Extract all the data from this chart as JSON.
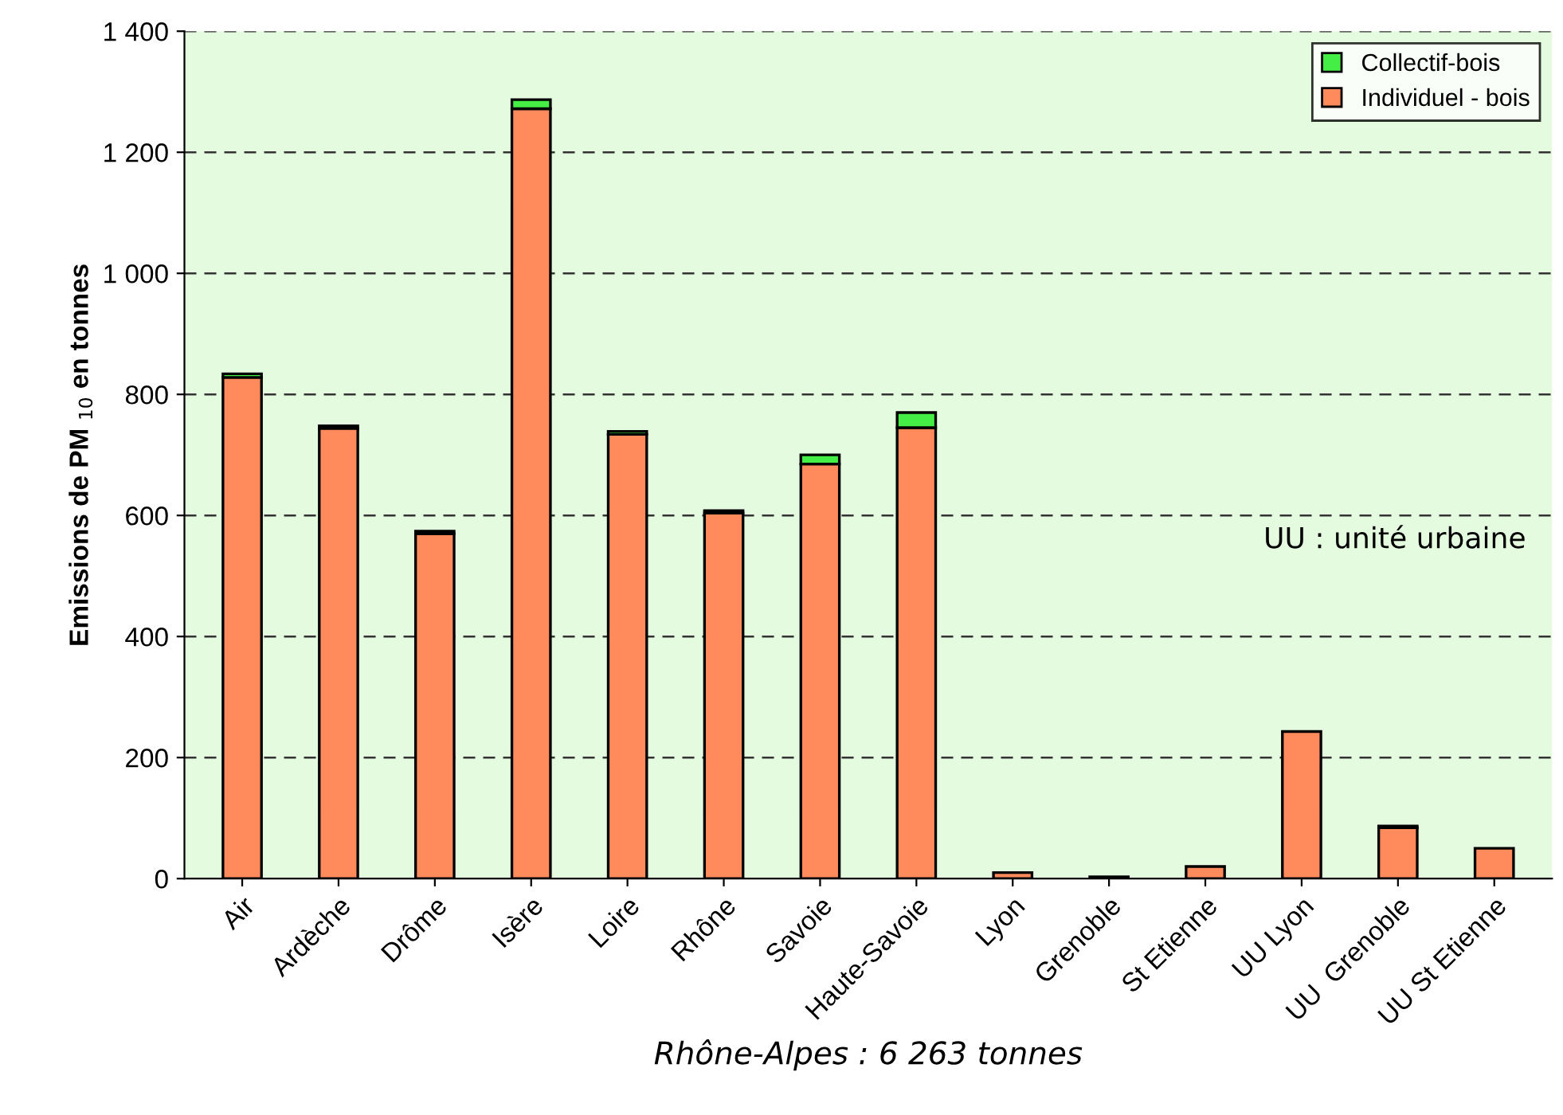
{
  "chart_data": {
    "type": "bar",
    "stacked": true,
    "categories": [
      "Air",
      "Ardèche",
      "Drôme",
      "Isère",
      "Loire",
      "Rhône",
      "Savoie",
      "Haute-Savoie",
      "Lyon",
      "Grenoble",
      "St Etienne",
      "UU Lyon",
      "UU  Grenoble",
      "UU St Etienne"
    ],
    "series": [
      {
        "name": "Individuel - bois",
        "color": "#ff8a5c",
        "values": [
          828,
          744,
          570,
          1272,
          734,
          604,
          685,
          745,
          10,
          3,
          20,
          243,
          84,
          50
        ]
      },
      {
        "name": "Collectif-bois",
        "color": "#44ee44",
        "values": [
          6,
          4,
          4,
          15,
          5,
          4,
          15,
          25,
          null,
          null,
          null,
          null,
          3,
          null
        ]
      }
    ],
    "ylabel": "Emissions de PM $_{10}$ en tonnes",
    "xlabel": "Rhône-Alpes : 6 263 tonnes",
    "annotations": [
      "UU : unité urbaine"
    ],
    "ylim": [
      0,
      1400
    ],
    "yticks": [
      0,
      200,
      400,
      600,
      800,
      {
        "value": 1000,
        "label": "1 000"
      },
      {
        "value": 1200,
        "label": "1 200"
      },
      {
        "value": 1400,
        "label": "1 400"
      }
    ],
    "grid": "y",
    "legend": "top right"
  }
}
